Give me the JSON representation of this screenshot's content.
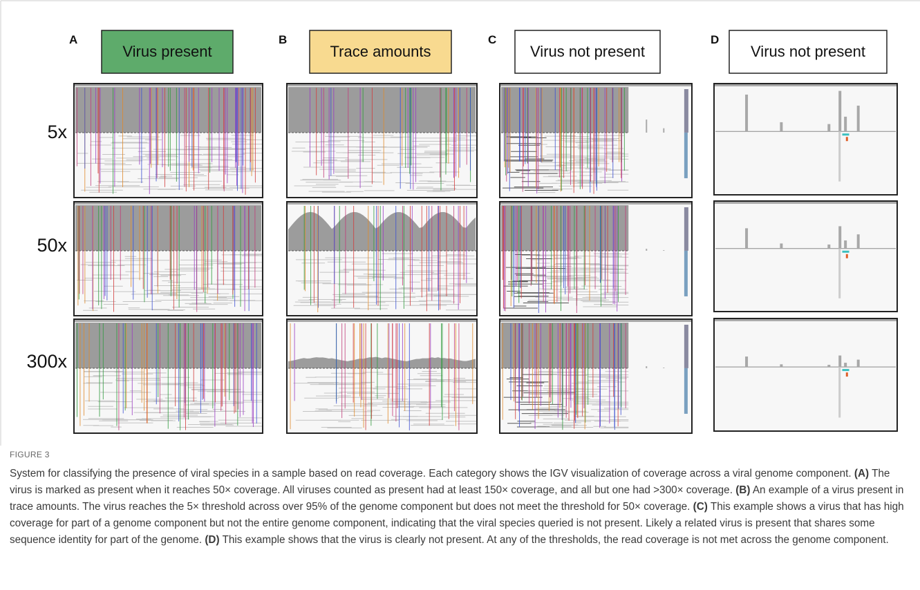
{
  "figure": {
    "panels": [
      {
        "letter": "A",
        "status": "Virus present"
      },
      {
        "letter": "B",
        "status": "Trace amounts"
      },
      {
        "letter": "C",
        "status": "Virus not present"
      },
      {
        "letter": "D",
        "status": "Virus not present"
      }
    ],
    "rows": [
      "5x",
      "50x",
      "300x"
    ],
    "label": "FIGURE 3",
    "caption": {
      "intro": "System for classifying the presence of viral species in a sample based on read coverage. Each category shows the IGV visualization of coverage across a viral genome component.",
      "items": [
        {
          "ref": "(A)",
          "text": "The virus is marked as present when it reaches 50× coverage. All viruses counted as present had at least 150× coverage, and all but one had >300× coverage."
        },
        {
          "ref": "(B)",
          "text": "An example of a virus present in trace amounts. The virus reaches the 5× threshold across over 95% of the genome component but does not meet the threshold for 50× coverage."
        },
        {
          "ref": "(C)",
          "text": "This example shows a virus that has high coverage for part of a genome component but not the entire genome component, indicating that the viral species queried is not present. Likely a related virus is present that shares some sequence identity for part of the genome."
        },
        {
          "ref": "(D)",
          "text": "This example shows that the virus is clearly not present. At any of the thresholds, the read coverage is not met across the genome component."
        }
      ]
    }
  }
}
